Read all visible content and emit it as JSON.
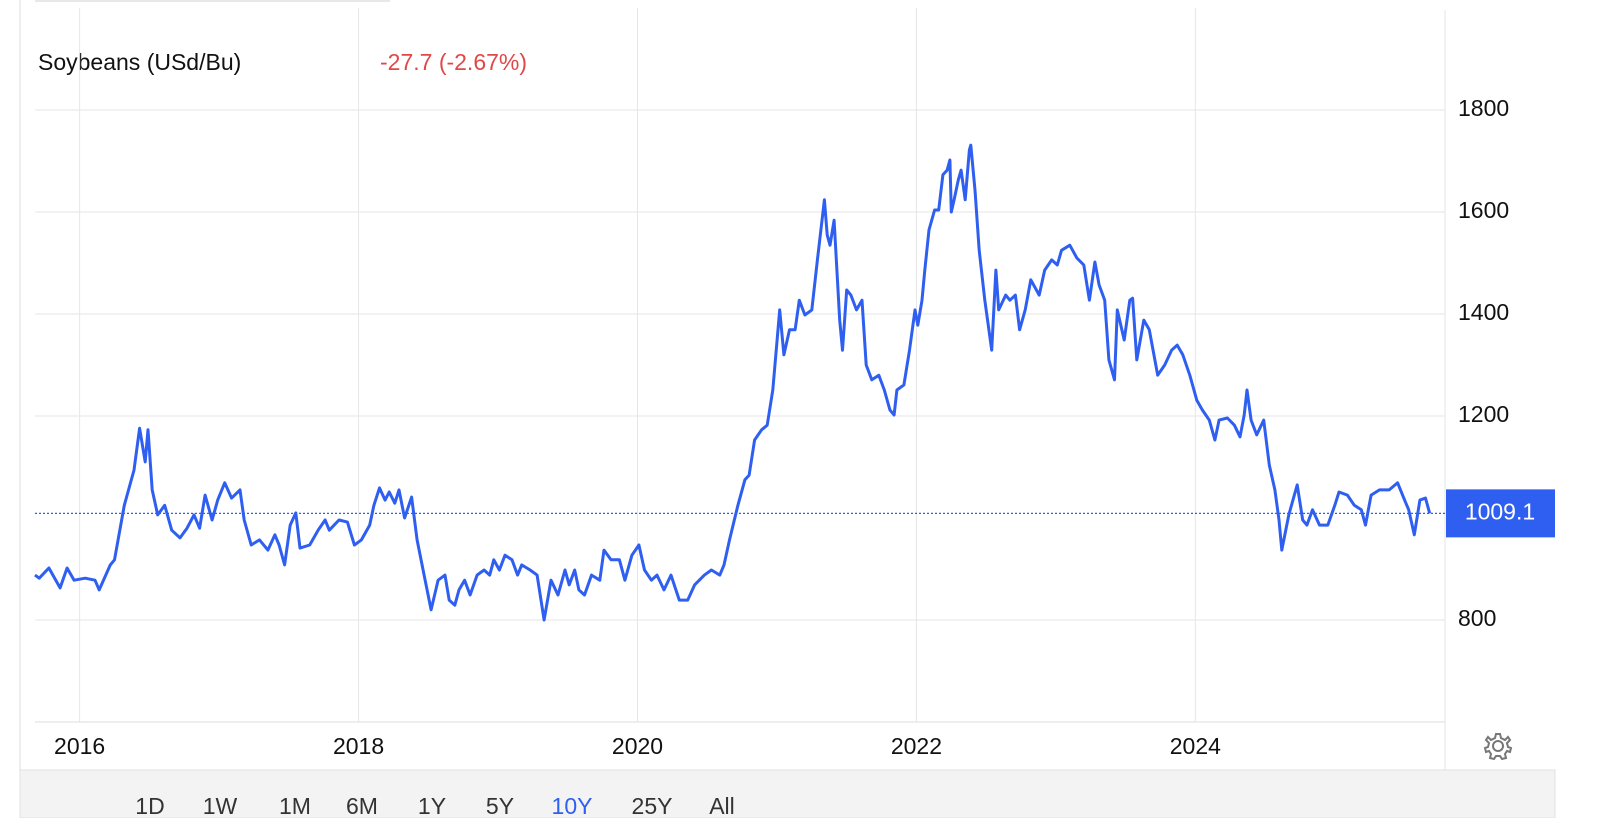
{
  "chart_data": {
    "type": "line",
    "title": "Soybeans (USd/Bu)",
    "change_label": "-27.7 (-2.67%)",
    "xlim": [
      2015.68,
      2025.79
    ],
    "xticks": [
      2016,
      2018,
      2020,
      2022,
      2024
    ],
    "ylim": [
      600,
      2000
    ],
    "yticks": [
      800,
      1200,
      1400,
      1600,
      1800
    ],
    "grid": true,
    "series": [
      {
        "name": "Soybeans",
        "color": "#2f5ff0",
        "x": [
          2015.68,
          2015.71,
          2015.78,
          2015.86,
          2015.91,
          2015.96,
          2016.04,
          2016.11,
          2016.14,
          2016.22,
          2016.25,
          2016.32,
          2016.39,
          2016.43,
          2016.47,
          2016.49,
          2016.52,
          2016.56,
          2016.61,
          2016.66,
          2016.72,
          2016.77,
          2016.82,
          2016.86,
          2016.9,
          2016.95,
          2016.99,
          2017.04,
          2017.09,
          2017.15,
          2017.18,
          2017.23,
          2017.29,
          2017.35,
          2017.4,
          2017.43,
          2017.47,
          2017.51,
          2017.55,
          2017.58,
          2017.65,
          2017.71,
          2017.76,
          2017.79,
          2017.86,
          2017.92,
          2017.97,
          2018.02,
          2018.08,
          2018.11,
          2018.15,
          2018.19,
          2018.22,
          2018.26,
          2018.29,
          2018.33,
          2018.38,
          2018.42,
          2018.47,
          2018.52,
          2018.57,
          2018.62,
          2018.65,
          2018.69,
          2018.72,
          2018.76,
          2018.8,
          2018.85,
          2018.9,
          2018.94,
          2018.97,
          2019.01,
          2019.05,
          2019.1,
          2019.14,
          2019.17,
          2019.23,
          2019.28,
          2019.33,
          2019.38,
          2019.43,
          2019.48,
          2019.51,
          2019.55,
          2019.58,
          2019.62,
          2019.67,
          2019.73,
          2019.76,
          2019.81,
          2019.87,
          2019.91,
          2019.96,
          2020.01,
          2020.05,
          2020.1,
          2020.14,
          2020.19,
          2020.24,
          2020.3,
          2020.36,
          2020.41,
          2020.48,
          2020.53,
          2020.59,
          2020.62,
          2020.66,
          2020.72,
          2020.77,
          2020.8,
          2020.84,
          2020.89,
          2020.93,
          2020.97,
          2021.02,
          2021.05,
          2021.09,
          2021.13,
          2021.16,
          2021.2,
          2021.25,
          2021.29,
          2021.34,
          2021.36,
          2021.38,
          2021.41,
          2021.45,
          2021.47,
          2021.5,
          2021.53,
          2021.57,
          2021.61,
          2021.64,
          2021.68,
          2021.73,
          2021.77,
          2021.81,
          2021.84,
          2021.86,
          2021.91,
          2021.95,
          2021.99,
          2022.01,
          2022.04,
          2022.06,
          2022.09,
          2022.13,
          2022.16,
          2022.19,
          2022.22,
          2022.24,
          2022.25,
          2022.27,
          2022.3,
          2022.32,
          2022.35,
          2022.38,
          2022.39,
          2022.42,
          2022.45,
          2022.49,
          2022.52,
          2022.54,
          2022.57,
          2022.59,
          2022.64,
          2022.67,
          2022.71,
          2022.74,
          2022.78,
          2022.82,
          2022.88,
          2022.92,
          2022.97,
          2023.01,
          2023.04,
          2023.1,
          2023.15,
          2023.2,
          2023.24,
          2023.28,
          2023.31,
          2023.35,
          2023.38,
          2023.42,
          2023.44,
          2023.49,
          2023.53,
          2023.55,
          2023.58,
          2023.63,
          2023.67,
          2023.73,
          2023.78,
          2023.83,
          2023.87,
          2023.91,
          2023.96,
          2024.01,
          2024.05,
          2024.1,
          2024.14,
          2024.17,
          2024.23,
          2024.28,
          2024.32,
          2024.35,
          2024.37,
          2024.4,
          2024.44,
          2024.49,
          2024.53,
          2024.57,
          2024.6,
          2024.62,
          2024.67,
          2024.73,
          2024.77,
          2024.8,
          2024.84,
          2024.89,
          2024.95,
          2025.0,
          2025.03,
          2025.09,
          2025.14,
          2025.19,
          2025.22,
          2025.26,
          2025.32,
          2025.39,
          2025.45,
          2025.5,
          2025.53,
          2025.57,
          2025.61,
          2025.65,
          2025.68
        ],
        "values": [
          888,
          882,
          902,
          863,
          902,
          878,
          882,
          878,
          859,
          908,
          918,
          1025,
          1094,
          1176,
          1110,
          1173,
          1055,
          1006,
          1025,
          976,
          961,
          980,
          1006,
          980,
          1045,
          996,
          1035,
          1069,
          1039,
          1055,
          996,
          947,
          957,
          937,
          967,
          947,
          908,
          986,
          1010,
          941,
          947,
          976,
          996,
          976,
          996,
          992,
          947,
          957,
          986,
          1025,
          1059,
          1035,
          1051,
          1029,
          1055,
          1000,
          1041,
          957,
          888,
          820,
          878,
          888,
          839,
          829,
          859,
          878,
          849,
          888,
          898,
          888,
          918,
          898,
          927,
          918,
          888,
          908,
          898,
          888,
          800,
          878,
          849,
          898,
          869,
          898,
          859,
          849,
          888,
          878,
          937,
          918,
          918,
          878,
          927,
          947,
          898,
          878,
          888,
          859,
          888,
          839,
          839,
          869,
          888,
          898,
          888,
          908,
          957,
          1025,
          1075,
          1084,
          1153,
          1173,
          1182,
          1251,
          1408,
          1320,
          1369,
          1369,
          1427,
          1398,
          1408,
          1506,
          1624,
          1555,
          1535,
          1584,
          1388,
          1329,
          1447,
          1437,
          1408,
          1427,
          1300,
          1271,
          1280,
          1251,
          1212,
          1202,
          1251,
          1261,
          1329,
          1408,
          1378,
          1427,
          1486,
          1565,
          1604,
          1604,
          1673,
          1682,
          1702,
          1600,
          1624,
          1663,
          1682,
          1624,
          1722,
          1731,
          1643,
          1525,
          1427,
          1369,
          1329,
          1486,
          1408,
          1437,
          1427,
          1437,
          1369,
          1408,
          1467,
          1437,
          1486,
          1506,
          1496,
          1525,
          1535,
          1510,
          1496,
          1427,
          1502,
          1457,
          1427,
          1310,
          1271,
          1408,
          1349,
          1427,
          1431,
          1310,
          1388,
          1369,
          1280,
          1300,
          1329,
          1339,
          1320,
          1280,
          1231,
          1212,
          1192,
          1153,
          1192,
          1196,
          1182,
          1159,
          1202,
          1251,
          1192,
          1163,
          1192,
          1104,
          1055,
          996,
          937,
          1006,
          1065,
          996,
          986,
          1016,
          986,
          986,
          1025,
          1051,
          1045,
          1025,
          1016,
          986,
          1045,
          1055,
          1055,
          1069,
          1035,
          1016,
          967,
          1035,
          1039,
          1009.1
        ]
      }
    ]
  },
  "range_buttons": [
    "1D",
    "1W",
    "1M",
    "6M",
    "1Y",
    "5Y",
    "10Y",
    "25Y",
    "All"
  ],
  "active_range_index": 6
}
